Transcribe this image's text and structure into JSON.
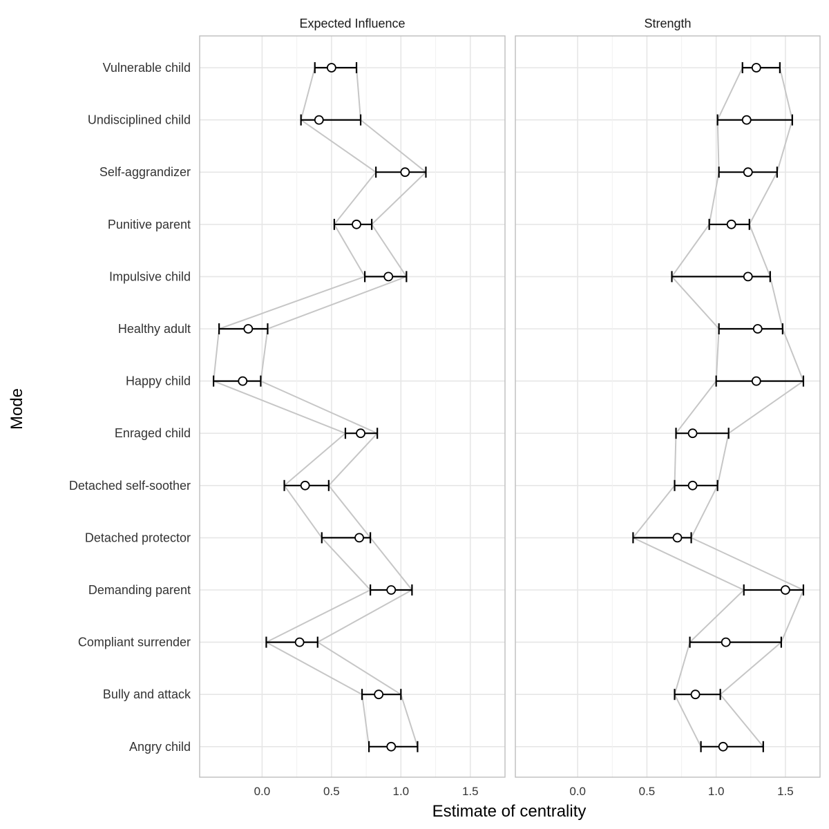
{
  "chart_data": {
    "type": "scatter",
    "subtype": "point-estimate-with-confidence-intervals, faceted",
    "xlabel": "Estimate of centrality",
    "ylabel": "Mode",
    "xlim": [
      -0.45,
      1.75
    ],
    "xticks": [
      0.0,
      0.5,
      1.0,
      1.5
    ],
    "xtick_labels": [
      "0.0",
      "0.5",
      "1.0",
      "1.5"
    ],
    "grid": true,
    "categories": [
      "Vulnerable child",
      "Undisciplined child",
      "Self-aggrandizer",
      "Punitive parent",
      "Impulsive child",
      "Healthy adult",
      "Happy child",
      "Enraged child",
      "Detached self-soother",
      "Detached protector",
      "Demanding parent",
      "Compliant surrender",
      "Bully and attack",
      "Angry child"
    ],
    "panels": [
      {
        "title": "Expected Influence",
        "estimate": [
          0.5,
          0.41,
          1.03,
          0.68,
          0.91,
          -0.1,
          -0.14,
          0.71,
          0.31,
          0.7,
          0.93,
          0.27,
          0.84,
          0.93
        ],
        "lower": [
          0.38,
          0.28,
          0.82,
          0.52,
          0.74,
          -0.31,
          -0.35,
          0.6,
          0.16,
          0.43,
          0.78,
          0.03,
          0.72,
          0.77
        ],
        "upper": [
          0.68,
          0.71,
          1.18,
          0.79,
          1.04,
          0.04,
          -0.01,
          0.83,
          0.48,
          0.78,
          1.08,
          0.4,
          1.0,
          1.12
        ]
      },
      {
        "title": "Strength",
        "estimate": [
          1.29,
          1.22,
          1.23,
          1.11,
          1.23,
          1.3,
          1.29,
          0.83,
          0.83,
          0.72,
          1.5,
          1.07,
          0.85,
          1.05
        ],
        "lower": [
          1.19,
          1.01,
          1.02,
          0.95,
          0.68,
          1.02,
          1.0,
          0.71,
          0.7,
          0.4,
          1.2,
          0.81,
          0.7,
          0.89
        ],
        "upper": [
          1.46,
          1.55,
          1.44,
          1.24,
          1.39,
          1.48,
          1.63,
          1.09,
          1.01,
          0.82,
          1.63,
          1.47,
          1.03,
          1.34
        ]
      }
    ]
  },
  "colors": {
    "point": "#000000",
    "errorbar": "#000000",
    "connector": "#c6c6c6",
    "grid": "#e6e6e6",
    "panel_border": "#bdbdbd",
    "text": "#333333"
  }
}
